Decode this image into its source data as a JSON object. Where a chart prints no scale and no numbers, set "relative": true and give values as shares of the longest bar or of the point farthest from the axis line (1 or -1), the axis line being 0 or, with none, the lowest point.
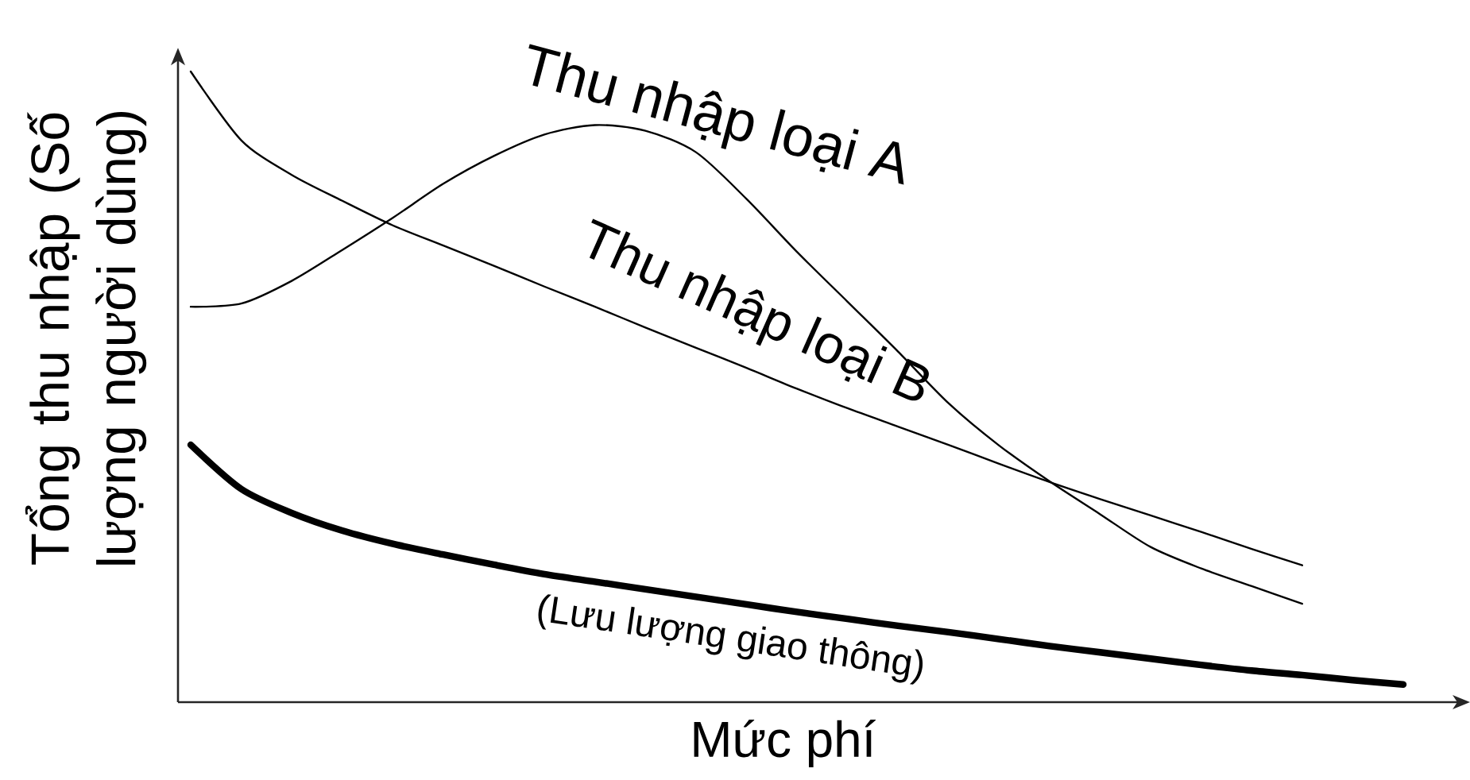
{
  "chart_data": {
    "type": "line",
    "xlabel": "Mức phí",
    "ylabel": "Tổng thu nhập (Số lượng người dùng)",
    "relative": true,
    "marker": "none",
    "line_style": "solid",
    "categories": [
      null,
      null,
      null,
      null,
      null,
      null,
      null,
      null,
      null,
      null,
      null,
      null,
      null,
      null,
      null,
      null,
      null,
      null,
      null,
      null,
      null,
      null,
      null,
      null,
      null
    ],
    "series": [
      {
        "name": "Thu nhập loại A",
        "color": "#000000",
        "values": [
          0.627,
          0.632,
          0.668,
          0.717,
          0.768,
          0.822,
          0.866,
          0.9,
          0.915,
          0.906,
          0.872,
          0.798,
          0.714,
          0.635,
          0.556,
          0.474,
          0.407,
          0.35,
          0.298,
          0.246,
          0.212,
          0.184,
          0.156,
          null,
          null
        ]
      },
      {
        "name": "Thu nhập loại B",
        "color": "#000000",
        "values": [
          1,
          0.891,
          0.836,
          0.795,
          0.756,
          0.724,
          0.692,
          0.659,
          0.627,
          0.594,
          0.562,
          0.53,
          0.497,
          0.466,
          0.437,
          0.408,
          0.378,
          0.349,
          0.322,
          0.296,
          0.27,
          0.243,
          0.217,
          null,
          null
        ]
      },
      {
        "name": "(Lưu lượng giao thông)",
        "color": "#000000",
        "values": [
          0.408,
          0.338,
          0.3,
          0.272,
          0.251,
          0.234,
          0.218,
          0.203,
          0.191,
          0.179,
          0.167,
          0.155,
          0.143,
          0.132,
          0.121,
          0.111,
          0.1,
          0.089,
          0.079,
          0.069,
          0.059,
          0.05,
          0.043,
          0.035,
          0.028
        ]
      }
    ]
  }
}
